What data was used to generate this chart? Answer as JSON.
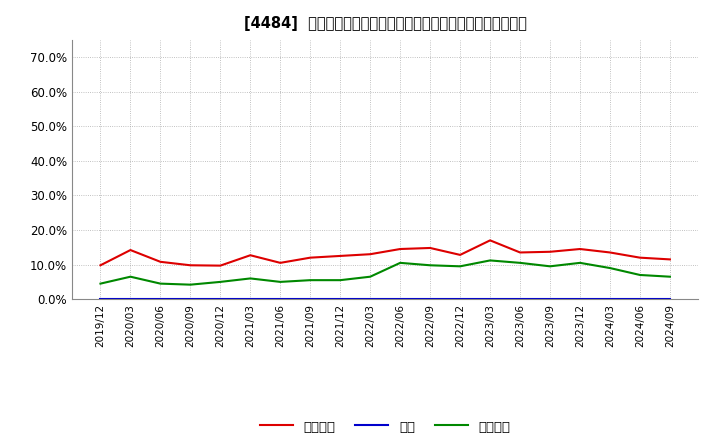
{
  "title": "[4484]  売上債権、在庫、買入債務の総資産に対する比率の推移",
  "x_labels": [
    "2019/12",
    "2020/03",
    "2020/06",
    "2020/09",
    "2020/12",
    "2021/03",
    "2021/06",
    "2021/09",
    "2021/12",
    "2022/03",
    "2022/06",
    "2022/09",
    "2022/12",
    "2023/03",
    "2023/06",
    "2023/09",
    "2023/12",
    "2024/03",
    "2024/06",
    "2024/09"
  ],
  "uriage": [
    9.8,
    14.2,
    10.8,
    9.8,
    9.7,
    12.7,
    10.5,
    12.0,
    12.5,
    13.0,
    14.5,
    14.8,
    12.8,
    17.0,
    13.5,
    13.7,
    14.5,
    13.5,
    12.0,
    11.5
  ],
  "zaiko": [
    0.2,
    0.2,
    0.2,
    0.2,
    0.2,
    0.2,
    0.2,
    0.2,
    0.2,
    0.2,
    0.2,
    0.2,
    0.2,
    0.2,
    0.2,
    0.2,
    0.2,
    0.2,
    0.2,
    0.2
  ],
  "kaiire": [
    4.5,
    6.5,
    4.5,
    4.2,
    5.0,
    6.0,
    5.0,
    5.5,
    5.5,
    6.5,
    10.5,
    9.8,
    9.5,
    11.2,
    10.5,
    9.5,
    10.5,
    9.0,
    7.0,
    6.5
  ],
  "color_uriage": "#dd0000",
  "color_zaiko": "#0000cc",
  "color_kaiire": "#008800",
  "ylim": [
    0,
    75
  ],
  "yticks": [
    0,
    10,
    20,
    30,
    40,
    50,
    60,
    70
  ],
  "ytick_labels": [
    "0.0%",
    "10.0%",
    "20.0%",
    "30.0%",
    "40.0%",
    "50.0%",
    "60.0%",
    "70.0%"
  ],
  "background_color": "#ffffff",
  "plot_bg_color": "#ffffff",
  "grid_color": "#999999",
  "legend_uriage": "売上債権",
  "legend_zaiko": "在庫",
  "legend_kaiire": "買入債務"
}
